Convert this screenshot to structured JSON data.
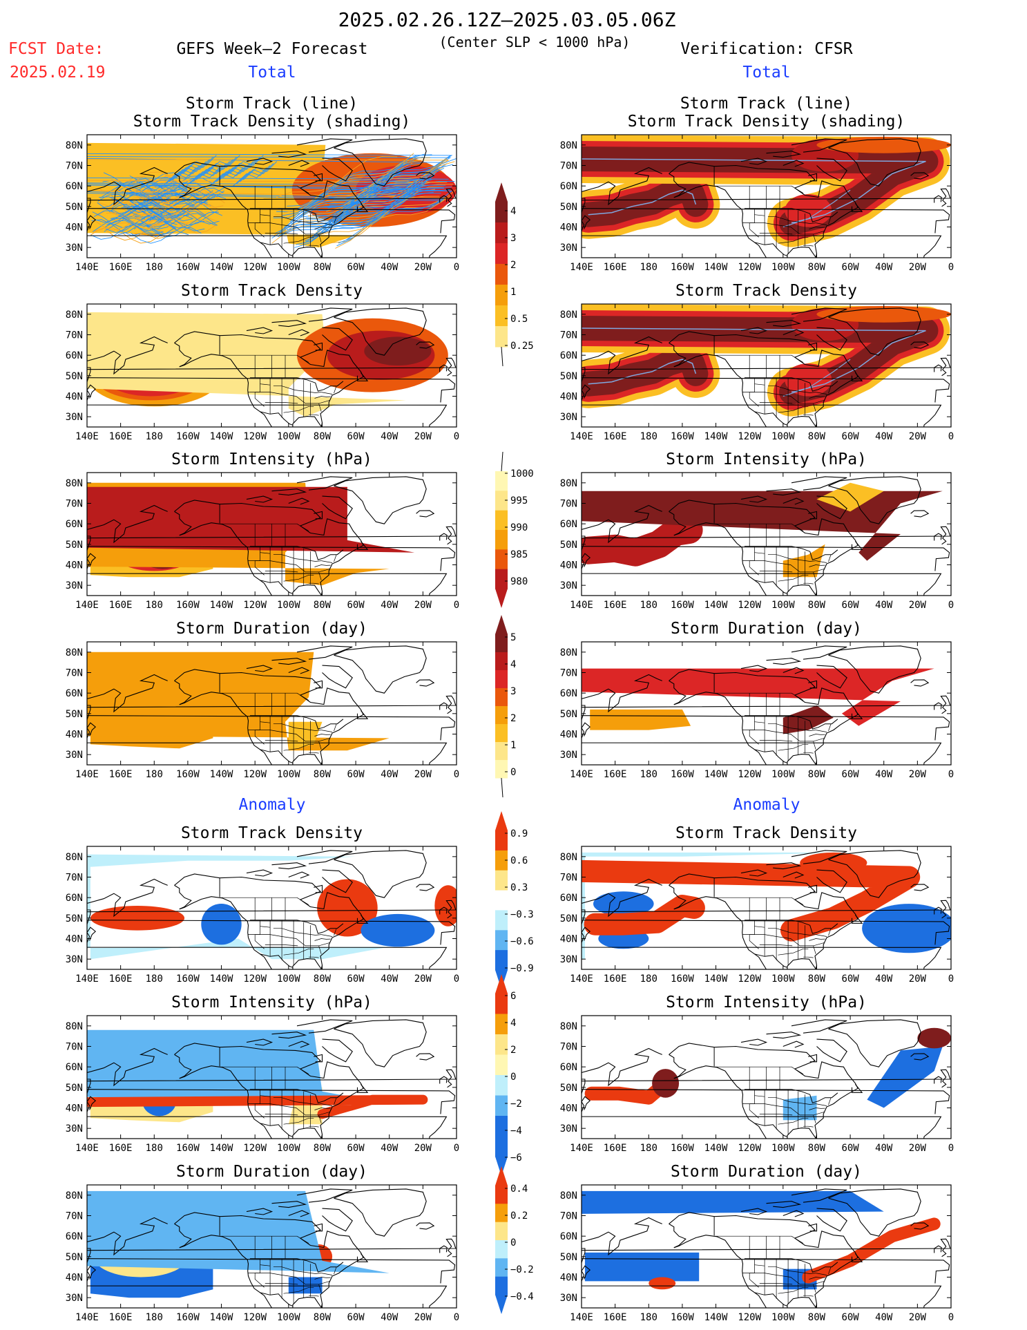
{
  "header": {
    "date_range": "2025.02.26.12Z–2025.03.05.06Z",
    "subtitle": "(Center SLP < 1000 hPa)",
    "fcst_label": "FCST Date:",
    "fcst_date": "2025.02.19",
    "left_title": "GEFS Week–2 Forecast",
    "right_title": "Verification: CFSR",
    "total_label": "Total",
    "anomaly_label": "Anomaly"
  },
  "axes": {
    "lat_ticks": [
      "80N",
      "70N",
      "60N",
      "50N",
      "40N",
      "30N"
    ],
    "lon_ticks": [
      "140E",
      "160E",
      "180",
      "160W",
      "140W",
      "120W",
      "100W",
      "80W",
      "60W",
      "40W",
      "20W",
      "0"
    ]
  },
  "panels": {
    "track_line": "Storm Track (line)",
    "track_shading": "Storm Track Density (shading)",
    "track_density": "Storm Track Density",
    "intensity": "Storm Intensity (hPa)",
    "duration": "Storm Duration (day)"
  },
  "colorbars": {
    "density": [
      "4",
      "3",
      "2",
      "1",
      "0.5",
      "0.25"
    ],
    "intensity": [
      "1000",
      "995",
      "990",
      "985",
      "980"
    ],
    "duration": [
      "5",
      "4",
      "3",
      "2",
      "1",
      "0"
    ],
    "anom_density": [
      "0.9",
      "0.6",
      "0.3",
      "−0.3",
      "−0.6",
      "−0.9"
    ],
    "anom_intensity": [
      "6",
      "4",
      "2",
      "0",
      "−2",
      "−4",
      "−6"
    ],
    "anom_duration": [
      "0.4",
      "0.2",
      "0",
      "−0.2",
      "−0.4"
    ]
  },
  "colors": {
    "warm": [
      "#fff7b3",
      "#fde68a",
      "#fbbf24",
      "#f59e0b",
      "#ea580c",
      "#dc2626",
      "#b91c1c",
      "#7f1d1d"
    ],
    "cool": [
      "#c7f0fb",
      "#7dd3f0",
      "#3b82f6",
      "#1d4ed8"
    ],
    "anom_pos": [
      "#fde68a",
      "#f59e0b",
      "#ea3a10"
    ],
    "anom_neg": [
      "#bfeffb",
      "#60b5f2",
      "#1d6fe0"
    ],
    "track": "#1e90ff"
  }
}
